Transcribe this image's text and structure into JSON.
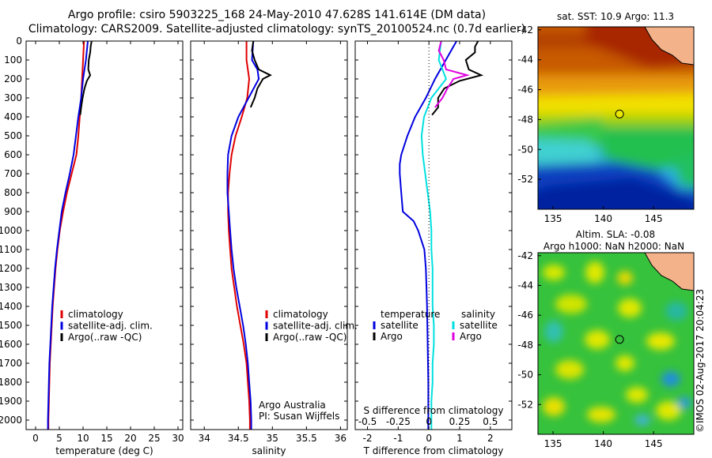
{
  "header": {
    "title_line1": "Argo profile: csiro 5903225_168 24-May-2010 47.628S 141.614E (DM data)",
    "title_line2": "Climatology: CARS2009. Satellite-adjusted climatology: synTS_20100524.nc (0.7d earlier)"
  },
  "credit": "©IMOS 02-Aug-2017 20:04:23",
  "colors": {
    "climatology": "#e00000",
    "satellite": "#0000e0",
    "argo": "#000000",
    "salinity_satellite": "#00e0e0",
    "salinity_argo": "#e000e0"
  },
  "depth_ticks": [
    0,
    100,
    200,
    300,
    400,
    500,
    600,
    700,
    800,
    900,
    1000,
    1100,
    1200,
    1300,
    1400,
    1500,
    1600,
    1700,
    1800,
    1900,
    2000
  ],
  "chart_data": [
    {
      "type": "line",
      "panel": "temperature",
      "xlabel": "temperature (deg C)",
      "ylabel": "",
      "xlim": [
        -2,
        31
      ],
      "ylim": [
        2050,
        0
      ],
      "xticks": [
        0,
        5,
        10,
        15,
        20,
        25,
        30
      ],
      "legend": [
        "climatology",
        "satellite-adj. clim.",
        "Argo(..raw -QC)"
      ],
      "series": [
        {
          "name": "climatology",
          "color": "#e00000",
          "depth": [
            0,
            50,
            100,
            200,
            300,
            400,
            500,
            600,
            700,
            800,
            900,
            1000,
            1100,
            1200,
            1300,
            1400,
            1500,
            1600,
            1700,
            1800,
            1900,
            2000,
            2050
          ],
          "values": [
            10.2,
            10.1,
            10.0,
            9.8,
            9.6,
            9.3,
            9.0,
            8.6,
            7.6,
            6.6,
            5.8,
            5.1,
            4.6,
            4.2,
            3.9,
            3.6,
            3.4,
            3.2,
            3.0,
            2.9,
            2.8,
            2.7,
            2.7
          ]
        },
        {
          "name": "satellite-adj. clim.",
          "color": "#0000e0",
          "depth": [
            0,
            50,
            100,
            200,
            300,
            400,
            500,
            600,
            700,
            800,
            900,
            1000,
            1100,
            1200,
            1300,
            1400,
            1500,
            1600,
            1700,
            1800,
            1900,
            2000,
            2050
          ],
          "values": [
            11.0,
            10.8,
            10.6,
            10.0,
            9.6,
            9.0,
            8.5,
            8.0,
            7.2,
            6.3,
            5.5,
            5.0,
            4.5,
            4.1,
            3.8,
            3.5,
            3.3,
            3.1,
            2.9,
            2.8,
            2.7,
            2.6,
            2.6
          ]
        },
        {
          "name": "Argo(..raw -QC)",
          "color": "#000000",
          "depth": [
            0,
            30,
            60,
            100,
            150,
            180,
            210,
            250,
            300,
            350,
            390
          ],
          "values": [
            11.8,
            11.6,
            11.5,
            11.2,
            11.1,
            11.5,
            10.8,
            10.3,
            9.9,
            9.6,
            9.4
          ]
        }
      ]
    },
    {
      "type": "line",
      "panel": "salinity",
      "xlabel": "salinity",
      "ylabel": "",
      "xlim": [
        33.8,
        36.1
      ],
      "ylim": [
        2050,
        0
      ],
      "xticks": [
        34,
        34.5,
        35,
        35.5,
        36
      ],
      "xticklabels": [
        "34",
        "34.5",
        "35",
        "35.5",
        "36"
      ],
      "legend": [
        "climatology",
        "satellite-adj. clim.",
        "Argo(..raw -QC)"
      ],
      "annotations": [
        "Argo Australia",
        "PI: Susan Wijffels"
      ],
      "series": [
        {
          "name": "climatology",
          "color": "#e00000",
          "depth": [
            0,
            100,
            200,
            300,
            400,
            500,
            600,
            700,
            800,
            900,
            1000,
            1100,
            1200,
            1300,
            1400,
            1500,
            1600,
            1700,
            1800,
            1900,
            2000,
            2050
          ],
          "values": [
            34.62,
            34.62,
            34.66,
            34.63,
            34.55,
            34.46,
            34.4,
            34.37,
            34.35,
            34.35,
            34.36,
            34.38,
            34.4,
            34.44,
            34.48,
            34.53,
            34.58,
            34.62,
            34.64,
            34.66,
            34.67,
            34.67
          ]
        },
        {
          "name": "satellite-adj. clim.",
          "color": "#0000e0",
          "depth": [
            0,
            100,
            150,
            200,
            300,
            400,
            500,
            600,
            700,
            800,
            900,
            1000,
            1100,
            1200,
            1300,
            1400,
            1500,
            1600,
            1700,
            1800,
            1900,
            2000,
            2050
          ],
          "values": [
            34.72,
            34.7,
            34.78,
            34.8,
            34.65,
            34.5,
            34.4,
            34.35,
            34.34,
            34.34,
            34.36,
            34.38,
            34.4,
            34.43,
            34.47,
            34.52,
            34.57,
            34.61,
            34.64,
            34.66,
            34.68,
            34.69,
            34.69
          ]
        },
        {
          "name": "Argo(..raw -QC)",
          "color": "#000000",
          "depth": [
            0,
            50,
            100,
            150,
            180,
            200,
            250,
            300,
            350
          ],
          "values": [
            34.72,
            34.7,
            34.74,
            34.8,
            34.97,
            34.86,
            34.78,
            34.74,
            34.68
          ]
        }
      ]
    },
    {
      "type": "line",
      "panel": "difference",
      "xlabel": "T difference from climatology",
      "xlabel_top": "S difference from climatology",
      "ylabel": "",
      "xlim": [
        -2.4,
        2.7
      ],
      "ylim": [
        2050,
        0
      ],
      "xticks": [
        -2,
        -1,
        0,
        1,
        2
      ],
      "s_xticks": [
        -0.5,
        -0.25,
        0,
        0.25,
        0.5
      ],
      "legend": [
        "temperature",
        "salinity",
        "satellite",
        "Argo",
        "satellite",
        "Argo"
      ],
      "series": [
        {
          "name": "satellite",
          "group": "temperature",
          "color": "#0000e0",
          "depth": [
            0,
            100,
            200,
            300,
            400,
            500,
            600,
            650,
            700,
            800,
            900,
            950,
            1000,
            1100,
            1200,
            1300,
            1400,
            1500,
            1600,
            1700,
            1800,
            1900,
            2000,
            2050
          ],
          "values": [
            0.9,
            0.55,
            0.2,
            -0.1,
            -0.45,
            -0.7,
            -0.9,
            -0.95,
            -0.95,
            -0.9,
            -0.85,
            -0.5,
            -0.35,
            -0.15,
            -0.1,
            -0.08,
            -0.06,
            -0.05,
            -0.04,
            -0.03,
            -0.02,
            -0.02,
            -0.02,
            -0.02
          ]
        },
        {
          "name": "Argo",
          "group": "temperature",
          "color": "#000000",
          "depth": [
            0,
            30,
            60,
            100,
            150,
            180,
            210,
            250,
            300,
            350,
            390
          ],
          "values": [
            1.6,
            1.5,
            1.5,
            1.2,
            1.3,
            1.7,
            1.0,
            0.5,
            0.3,
            0.3,
            0.1
          ]
        },
        {
          "name": "satellite",
          "group": "salinity",
          "color": "#00e0e0",
          "depth": [
            0,
            100,
            200,
            300,
            400,
            500,
            600,
            700,
            800,
            900,
            1000,
            1100,
            1200,
            1300,
            1400,
            1500,
            1600,
            1700,
            1800,
            1900,
            2000,
            2050
          ],
          "values": [
            0.1,
            0.08,
            0.14,
            0.02,
            -0.04,
            -0.06,
            -0.05,
            -0.03,
            -0.01,
            0.01,
            0.02,
            0.02,
            0.03,
            0.03,
            0.03,
            0.04,
            0.04,
            0.03,
            0.03,
            0.02,
            0.02,
            0.02
          ]
        },
        {
          "name": "Argo",
          "group": "salinity",
          "color": "#e000e0",
          "depth": [
            0,
            50,
            100,
            150,
            180,
            200,
            250,
            300,
            350
          ],
          "values": [
            0.1,
            0.08,
            0.12,
            0.14,
            0.31,
            0.2,
            0.15,
            0.11,
            0.05
          ]
        }
      ]
    },
    {
      "type": "heatmap",
      "panel": "map-sst",
      "title": "sat. SST: 10.9 Argo: 11.3",
      "xlim": [
        133.5,
        149
      ],
      "ylim": [
        -54,
        -41.8
      ],
      "xticks": [
        135,
        140,
        145
      ],
      "yticks": [
        -42,
        -44,
        -46,
        -48,
        -50,
        -52
      ],
      "argo_position": {
        "lon": 141.614,
        "lat": -47.628
      }
    },
    {
      "type": "heatmap",
      "panel": "map-sla",
      "title": "Altim. SLA: -0.08",
      "subtitle": "Argo h1000: NaN h2000: NaN",
      "xlim": [
        133.5,
        149
      ],
      "ylim": [
        -54,
        -41.8
      ],
      "xticks": [
        135,
        140,
        145
      ],
      "yticks": [
        -42,
        -44,
        -46,
        -48,
        -50,
        -52
      ],
      "argo_position": {
        "lon": 141.614,
        "lat": -47.628
      }
    }
  ]
}
